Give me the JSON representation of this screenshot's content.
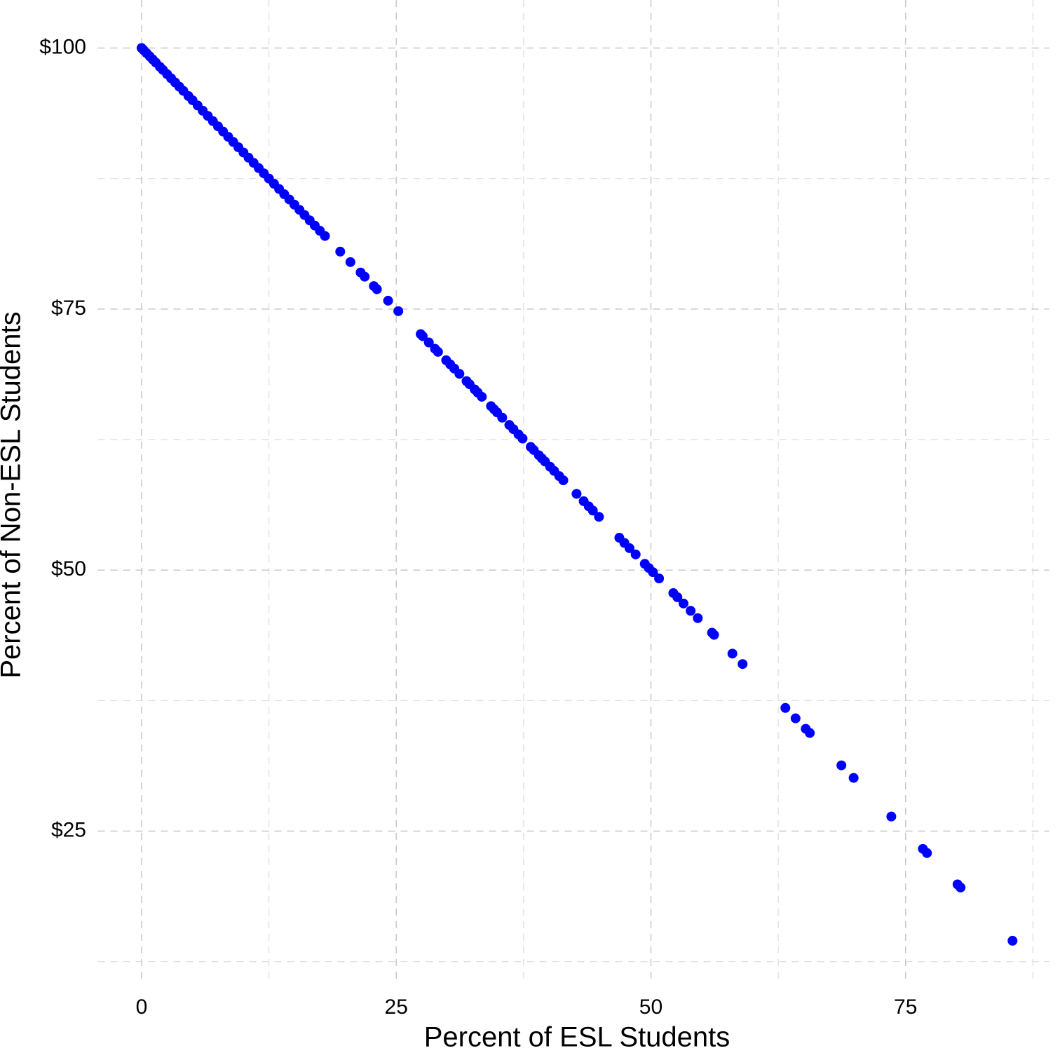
{
  "chart_data": {
    "type": "scatter",
    "x_label": "Percent of ESL Students",
    "y_label": "Percent of Non-ESL Students",
    "color": "#0000ff",
    "grid": true,
    "xlim": [
      -4.3,
      89.1
    ],
    "ylim": [
      10.6,
      104.6
    ],
    "xticks": [
      0,
      25,
      50,
      75
    ],
    "x_minor_ticks": [
      12.5,
      37.5,
      62.5,
      87.5
    ],
    "yticks": [
      {
        "value": 25,
        "label": "$25"
      },
      {
        "value": 50,
        "label": "$50"
      },
      {
        "value": 75,
        "label": "$75"
      },
      {
        "value": 100,
        "label": "$100"
      }
    ],
    "y_minor_ticks": [
      12.5,
      37.5,
      62.5,
      87.5
    ],
    "x": [
      0,
      0.2,
      0.5,
      0.8,
      1.1,
      1.4,
      1.8,
      2.1,
      2.5,
      2.9,
      3.3,
      3.7,
      4.1,
      4.6,
      5.0,
      5.5,
      6.0,
      6.5,
      7.0,
      7.5,
      8.0,
      8.5,
      9.0,
      9.5,
      10.0,
      10.5,
      11.0,
      11.5,
      12.0,
      12.5,
      13.0,
      13.5,
      14.0,
      14.5,
      15.0,
      15.5,
      16.0,
      16.5,
      17.0,
      17.5,
      18.0,
      19.5,
      20.5,
      21.5,
      21.9,
      22.8,
      23.1,
      24.2,
      25.2,
      27.4,
      27.6,
      28.2,
      28.8,
      29.1,
      29.9,
      30.3,
      30.7,
      31.2,
      31.9,
      32.2,
      32.7,
      33.0,
      33.4,
      34.3,
      34.6,
      34.9,
      35.4,
      36.1,
      36.5,
      37.0,
      37.4,
      38.2,
      38.5,
      39.0,
      39.3,
      39.6,
      40.1,
      40.5,
      41.0,
      41.4,
      42.7,
      43.4,
      43.9,
      44.3,
      44.9,
      46.9,
      47.4,
      47.9,
      48.5,
      49.4,
      49.8,
      50.2,
      50.8,
      52.2,
      52.6,
      53.2,
      53.9,
      54.6,
      56.0,
      56.2,
      58.0,
      59.0,
      63.2,
      64.2,
      65.2,
      65.6,
      68.7,
      69.9,
      73.6,
      76.7,
      77.1,
      80.1,
      80.4,
      85.5
    ],
    "y": [
      100,
      99.8,
      99.5,
      99.2,
      98.9,
      98.6,
      98.2,
      97.9,
      97.5,
      97.1,
      96.7,
      96.3,
      95.9,
      95.4,
      95.0,
      94.5,
      94.0,
      93.5,
      93.0,
      92.5,
      92.0,
      91.5,
      91.0,
      90.5,
      90.0,
      89.5,
      89.0,
      88.5,
      88.0,
      87.5,
      87.0,
      86.5,
      86.0,
      85.5,
      85.0,
      84.5,
      84.0,
      83.5,
      83.0,
      82.5,
      82.0,
      80.5,
      79.5,
      78.5,
      78.1,
      77.2,
      76.9,
      75.8,
      74.8,
      72.6,
      72.4,
      71.8,
      71.2,
      70.9,
      70.1,
      69.7,
      69.3,
      68.8,
      68.1,
      67.8,
      67.3,
      67.0,
      66.6,
      65.7,
      65.4,
      65.1,
      64.6,
      63.9,
      63.5,
      63.0,
      62.6,
      61.8,
      61.5,
      61.0,
      60.7,
      60.4,
      59.9,
      59.5,
      59.0,
      58.6,
      57.3,
      56.6,
      56.1,
      55.7,
      55.1,
      53.1,
      52.6,
      52.1,
      51.5,
      50.6,
      50.2,
      49.8,
      49.2,
      47.8,
      47.4,
      46.8,
      46.1,
      45.4,
      44.0,
      43.8,
      42.0,
      41.0,
      36.8,
      35.8,
      34.8,
      34.4,
      31.3,
      30.1,
      26.4,
      23.3,
      22.9,
      19.9,
      19.6,
      14.5
    ]
  }
}
